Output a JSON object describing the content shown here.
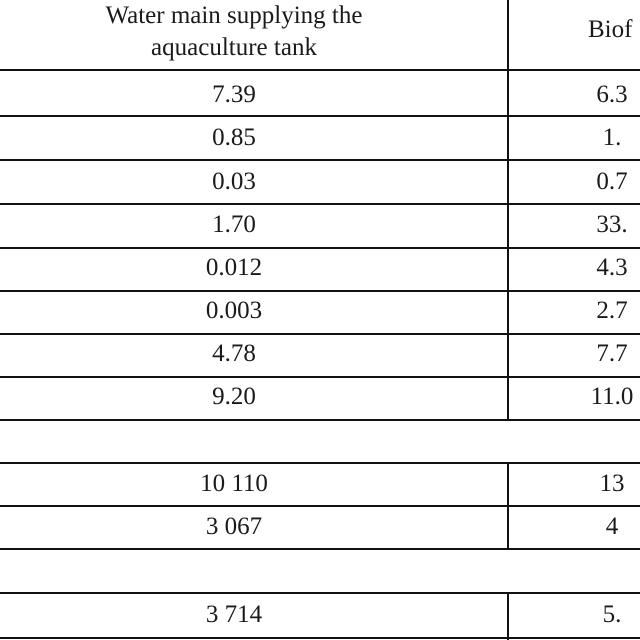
{
  "header": {
    "col1_line1": "Water main supplying the",
    "col1_line2": "aquaculture tank",
    "col2": "Biof"
  },
  "rows": [
    {
      "col1": "7.39",
      "col2": "6.3"
    },
    {
      "col1": "0.85",
      "col2": "1."
    },
    {
      "col1": "0.03",
      "col2": "0.7"
    },
    {
      "col1": "1.70",
      "col2": "33."
    },
    {
      "col1": "0.012",
      "col2": "4.3"
    },
    {
      "col1": "0.003",
      "col2": "2.7"
    },
    {
      "col1": "4.78",
      "col2": "7.7"
    },
    {
      "col1": "9.20",
      "col2": "11.0"
    },
    {
      "col1": "10 110",
      "col2": "13"
    },
    {
      "col1": "3 067",
      "col2": "4"
    },
    {
      "col1": "3 714",
      "col2": "5."
    }
  ]
}
